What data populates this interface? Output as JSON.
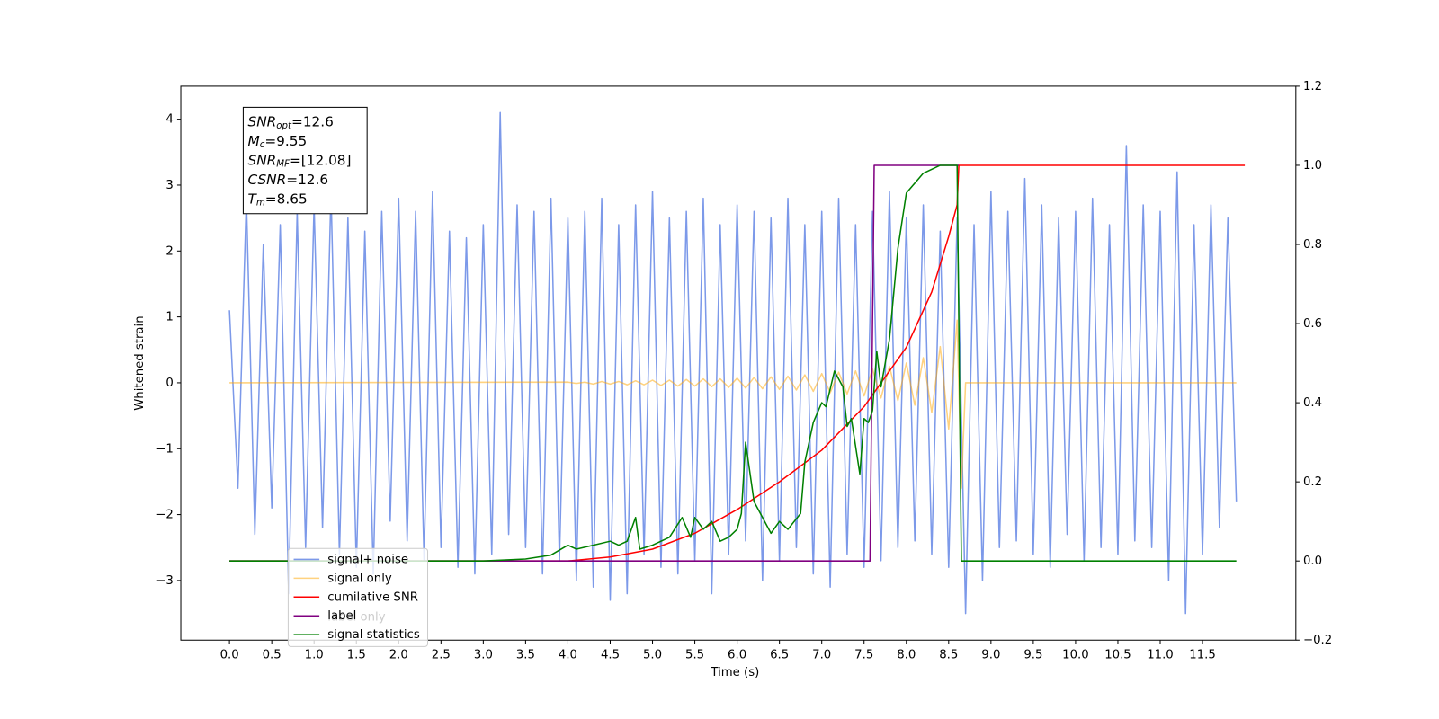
{
  "chart_data": {
    "type": "line",
    "xlabel": "Time (s)",
    "ylabel": "Whitened strain",
    "xlim": [
      -0.575,
      12.603
    ],
    "ylim": [
      -3.905,
      4.501
    ],
    "y2lim": [
      -0.2,
      1.2
    ],
    "xticks": [
      {
        "value": 0,
        "label": "0.0"
      },
      0.5,
      {
        "value": 1,
        "label": "1.0"
      },
      1.5,
      {
        "value": 2,
        "label": "2.0"
      },
      2.5,
      {
        "value": 3,
        "label": "3.0"
      },
      3.5,
      {
        "value": 4,
        "label": "4.0"
      },
      4.5,
      {
        "value": 5,
        "label": "5.0"
      },
      5.5,
      {
        "value": 6,
        "label": "6.0"
      },
      6.5,
      {
        "value": 7,
        "label": "7.0"
      },
      7.5,
      {
        "value": 8,
        "label": "8.0"
      },
      8.5,
      {
        "value": 9,
        "label": "9.0"
      },
      9.5,
      {
        "value": 10,
        "label": "10.0"
      },
      10.5,
      {
        "value": 11,
        "label": "11.0"
      },
      11.5
    ],
    "yticks": [
      {
        "value": -3,
        "label": "−3"
      },
      {
        "value": -2,
        "label": "−2"
      },
      {
        "value": -1,
        "label": "−1"
      },
      0,
      1,
      2,
      3,
      4
    ],
    "y2ticks": [
      {
        "value": -0.2,
        "label": "−0.2"
      },
      {
        "value": 0,
        "label": "0.0"
      },
      0.2,
      0.4,
      0.6,
      0.8,
      {
        "value": 1,
        "label": "1.0"
      },
      1.2
    ],
    "legend": "lower left",
    "ghost_legend_text": "label only",
    "annotation": [
      {
        "text": "SNR",
        "sub": "opt",
        "rest": "=12.6"
      },
      {
        "text": "M",
        "sub": "c",
        "rest": "=9.55"
      },
      {
        "text": "SNR",
        "sub": "MF",
        "rest": "=[12.08]"
      },
      {
        "text": "CSNR",
        "rest": "=12.6"
      },
      {
        "text": "T",
        "sub": "m",
        "rest": "=8.65"
      }
    ],
    "series": [
      {
        "name": "signal+ noise",
        "color": "#5b7fe3",
        "alpha": 0.8,
        "x": [
          0.0,
          0.1,
          0.2,
          0.3,
          0.4,
          0.5,
          0.6,
          0.7,
          0.8,
          0.9,
          1.0,
          1.1,
          1.2,
          1.3,
          1.4,
          1.5,
          1.6,
          1.7,
          1.8,
          1.9,
          2.0,
          2.1,
          2.2,
          2.3,
          2.4,
          2.5,
          2.6,
          2.7,
          2.8,
          2.9,
          3.0,
          3.1,
          3.2,
          3.3,
          3.4,
          3.5,
          3.6,
          3.7,
          3.8,
          3.9,
          4.0,
          4.1,
          4.2,
          4.3,
          4.4,
          4.5,
          4.6,
          4.7,
          4.8,
          4.9,
          5.0,
          5.1,
          5.2,
          5.3,
          5.4,
          5.5,
          5.6,
          5.7,
          5.8,
          5.9,
          6.0,
          6.1,
          6.2,
          6.3,
          6.4,
          6.5,
          6.6,
          6.7,
          6.8,
          6.9,
          7.0,
          7.1,
          7.2,
          7.3,
          7.4,
          7.5,
          7.6,
          7.7,
          7.8,
          7.9,
          8.0,
          8.1,
          8.2,
          8.3,
          8.4,
          8.5,
          8.6,
          8.7,
          8.8,
          8.9,
          9.0,
          9.1,
          9.2,
          9.3,
          9.4,
          9.5,
          9.6,
          9.7,
          9.8,
          9.9,
          10.0,
          10.1,
          10.2,
          10.3,
          10.4,
          10.5,
          10.6,
          10.7,
          10.8,
          10.9,
          11.0,
          11.1,
          11.2,
          11.3,
          11.4,
          11.5,
          11.6,
          11.7,
          11.8,
          11.9
        ],
        "values": [
          1.1,
          -1.6,
          2.8,
          -2.3,
          2.1,
          -1.9,
          2.4,
          -3.2,
          2.6,
          -2.5,
          2.7,
          -2.2,
          2.9,
          -2.6,
          2.5,
          -2.8,
          2.3,
          -2.9,
          2.6,
          -2.1,
          2.8,
          -2.4,
          2.6,
          -2.7,
          2.9,
          -2.5,
          2.3,
          -2.8,
          2.2,
          -2.9,
          2.4,
          -2.6,
          4.1,
          -2.3,
          2.7,
          -2.5,
          2.6,
          -2.9,
          2.8,
          -2.7,
          2.5,
          -3.0,
          2.6,
          -3.1,
          2.8,
          -3.3,
          2.4,
          -3.2,
          2.7,
          -2.6,
          2.9,
          -2.8,
          2.5,
          -2.9,
          2.6,
          -2.7,
          2.8,
          -3.2,
          2.4,
          -2.6,
          2.7,
          -2.4,
          2.6,
          -3.0,
          2.5,
          -2.7,
          2.8,
          -2.5,
          2.4,
          -2.9,
          2.6,
          -3.1,
          2.8,
          -2.6,
          2.4,
          -2.8,
          2.6,
          -2.7,
          2.9,
          -2.5,
          2.5,
          -2.4,
          2.7,
          -2.6,
          2.3,
          -2.8,
          2.5,
          -3.5,
          2.4,
          -3.0,
          2.9,
          -2.5,
          2.6,
          -2.4,
          3.1,
          -2.6,
          2.7,
          -2.8,
          2.5,
          -2.3,
          2.6,
          -2.7,
          2.8,
          -2.5,
          2.4,
          -2.6,
          3.6,
          -2.4,
          2.7,
          -2.5,
          2.6,
          -3.0,
          3.2,
          -3.5,
          2.4,
          -2.6,
          2.7,
          -2.2,
          2.5,
          -1.8
        ]
      },
      {
        "name": "signal only",
        "color": "#ffa500",
        "alpha": 0.5,
        "x": [
          0.0,
          4.0,
          4.1,
          4.2,
          4.3,
          4.4,
          4.5,
          4.6,
          4.7,
          4.8,
          4.9,
          5.0,
          5.1,
          5.2,
          5.3,
          5.4,
          5.5,
          5.6,
          5.7,
          5.8,
          5.9,
          6.0,
          6.1,
          6.2,
          6.3,
          6.4,
          6.5,
          6.6,
          6.7,
          6.8,
          6.9,
          7.0,
          7.1,
          7.2,
          7.3,
          7.4,
          7.5,
          7.6,
          7.7,
          7.8,
          7.9,
          8.0,
          8.1,
          8.2,
          8.3,
          8.4,
          8.5,
          8.6,
          8.65,
          8.7,
          11.9
        ],
        "values": [
          0,
          0.01,
          -0.01,
          0.01,
          -0.02,
          0.02,
          -0.02,
          0.02,
          -0.03,
          0.03,
          -0.03,
          0.04,
          -0.04,
          0.04,
          -0.05,
          0.05,
          -0.05,
          0.06,
          -0.06,
          0.06,
          -0.07,
          0.07,
          -0.08,
          0.08,
          -0.09,
          0.09,
          -0.1,
          0.1,
          -0.11,
          0.12,
          -0.13,
          0.14,
          -0.15,
          0.16,
          -0.17,
          0.18,
          -0.2,
          0.21,
          -0.23,
          0.25,
          -0.27,
          0.3,
          -0.34,
          0.38,
          -0.45,
          0.55,
          -0.7,
          0.95,
          -1.6,
          0,
          0
        ]
      },
      {
        "name": "cumilative SNR",
        "color": "red",
        "axis": "y2",
        "x": [
          0.0,
          4.0,
          4.5,
          5.0,
          5.5,
          6.0,
          6.5,
          7.0,
          7.5,
          8.0,
          8.3,
          8.5,
          8.6,
          8.62,
          8.65,
          12.0
        ],
        "values": [
          0,
          0,
          0.01,
          0.03,
          0.07,
          0.13,
          0.2,
          0.28,
          0.39,
          0.54,
          0.68,
          0.82,
          0.9,
          1.0,
          1.0,
          1.0
        ]
      },
      {
        "name": "label",
        "color": "purple",
        "axis": "y2",
        "x": [
          0.0,
          7.57,
          7.62,
          8.62
        ],
        "values": [
          0,
          0,
          1,
          1
        ]
      },
      {
        "name": "signal statistics",
        "color": "green",
        "axis": "y2",
        "x": [
          0.0,
          3.0,
          3.5,
          3.8,
          4.0,
          4.1,
          4.3,
          4.5,
          4.6,
          4.7,
          4.8,
          4.85,
          5.0,
          5.2,
          5.35,
          5.45,
          5.5,
          5.6,
          5.7,
          5.8,
          5.9,
          6.0,
          6.05,
          6.1,
          6.2,
          6.3,
          6.4,
          6.5,
          6.6,
          6.75,
          6.8,
          6.9,
          7.0,
          7.05,
          7.15,
          7.25,
          7.3,
          7.35,
          7.45,
          7.5,
          7.55,
          7.6,
          7.65,
          7.7,
          7.8,
          7.9,
          8.0,
          8.2,
          8.4,
          8.5,
          8.6,
          8.65,
          11.9
        ],
        "values": [
          0,
          0,
          0.005,
          0.015,
          0.04,
          0.03,
          0.04,
          0.05,
          0.04,
          0.05,
          0.11,
          0.03,
          0.04,
          0.06,
          0.11,
          0.06,
          0.11,
          0.08,
          0.1,
          0.05,
          0.06,
          0.08,
          0.12,
          0.3,
          0.15,
          0.11,
          0.07,
          0.1,
          0.08,
          0.12,
          0.25,
          0.35,
          0.4,
          0.39,
          0.48,
          0.44,
          0.34,
          0.36,
          0.22,
          0.36,
          0.35,
          0.38,
          0.53,
          0.44,
          0.56,
          0.79,
          0.93,
          0.98,
          1.0,
          1.0,
          1.0,
          0.0,
          0.0
        ]
      }
    ]
  }
}
